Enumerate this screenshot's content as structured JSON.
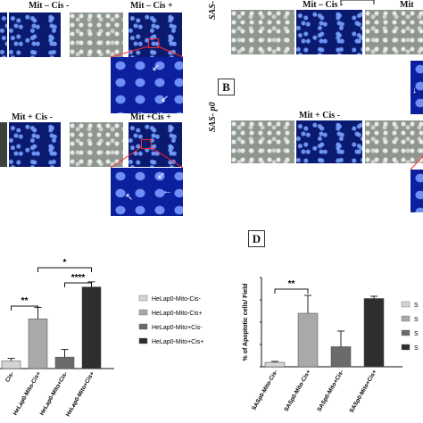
{
  "panel_A": {
    "labels": [
      "Mit – Cis -",
      "Mit – Cis +",
      "Mit + Cis -",
      "Mit +Cis +"
    ]
  },
  "panel_B": {
    "letter": "B",
    "side_labels": [
      "SAS- p0",
      "SAS- p0"
    ],
    "labels": [
      "Mit – Cis -",
      "Mit + Cis -"
    ]
  },
  "panel_D": {
    "letter": "D"
  },
  "chart_data": [
    {
      "type": "bar",
      "categories": [
        "HeLap0-Mito-Cis-",
        "HeLap0-Mito-Cis+",
        "HeLap0-Mito+Cis-",
        "HeLap0-Mito+Cis+"
      ],
      "tick_labels": [
        "Cis-",
        "HeLap0-Mito-Cis+",
        "HeLap0-Mito+Cis-",
        "HeLap0-Mito+Cis+"
      ],
      "values": [
        6,
        39,
        9,
        64
      ],
      "errors": [
        2,
        9,
        6,
        4
      ],
      "colors": [
        "#d4d4d4",
        "#a9a9a9",
        "#6b6b6b",
        "#2e2e2e"
      ],
      "legend": [
        "HeLap0-Mito-Cis-",
        "HeLap0-Mito-Cis+",
        "HeLap0-Mito+Cis-",
        "HeLap0-Mito+Cis+"
      ],
      "significance": [
        {
          "from": 0,
          "to": 1,
          "label": "**"
        },
        {
          "from": 1,
          "to": 3,
          "label": "*"
        },
        {
          "from": 2,
          "to": 3,
          "label": "****"
        }
      ]
    },
    {
      "type": "bar",
      "categories": [
        "SASp0-Mito-Cis-",
        "SASp0-Mito-Cis+",
        "SASp0-Mito+Cis-",
        "SASp0-Mito+Cis+"
      ],
      "values": [
        1,
        12,
        4.5,
        15.3
      ],
      "errors": [
        0.2,
        4,
        3.5,
        0.5
      ],
      "colors": [
        "#d4d4d4",
        "#a9a9a9",
        "#6b6b6b",
        "#2e2e2e"
      ],
      "ylabel": "% of Apoptotic cells/ Field",
      "ylim": [
        0,
        20
      ],
      "yticks": [
        "0",
        "5",
        "10",
        "15",
        "20"
      ],
      "legend": [
        "S",
        "S",
        "S",
        "S"
      ],
      "significance": [
        {
          "from": 0,
          "to": 1,
          "label": "**"
        },
        {
          "from": 2,
          "to": 3,
          "label": "**"
        }
      ]
    }
  ]
}
